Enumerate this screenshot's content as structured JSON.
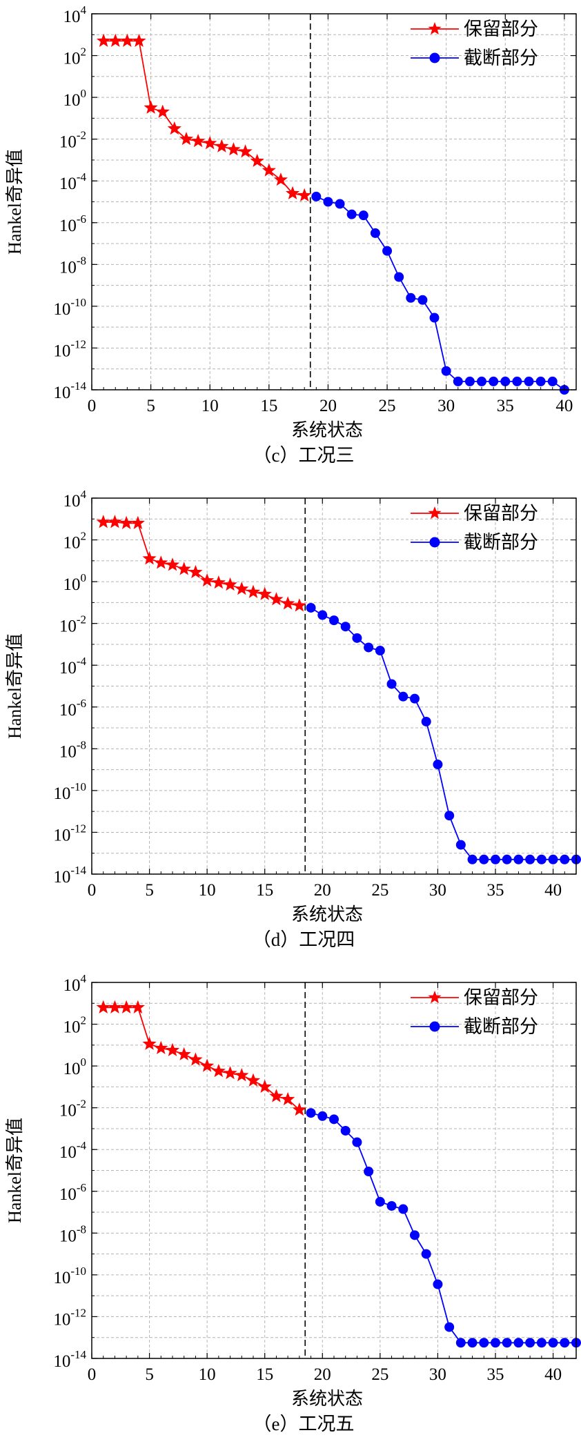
{
  "chart_data": [
    {
      "type": "line",
      "caption": "（c）工况三",
      "xlabel": "系统状态",
      "ylabel": "Hankel奇异值",
      "xlim": [
        0,
        41
      ],
      "ylim_log10": [
        -14,
        4
      ],
      "xticks": [
        "0",
        "5",
        "10",
        "15",
        "20",
        "25",
        "30",
        "35",
        "40"
      ],
      "ytick_exponents": [
        "4",
        "2",
        "0",
        "-2",
        "-4",
        "-6",
        "-8",
        "-10",
        "-12",
        "-14"
      ],
      "divider_x": 18.5,
      "grid": true,
      "legend_position": "top-right",
      "series": [
        {
          "name": "保留部分",
          "color": "#ff0000",
          "marker": "star",
          "x": [
            1,
            2,
            3,
            4,
            5,
            6,
            7,
            8,
            9,
            10,
            11,
            12,
            13,
            14,
            15,
            16,
            17,
            18
          ],
          "log10_y": [
            2.7,
            2.7,
            2.7,
            2.7,
            -0.5,
            -0.7,
            -1.5,
            -2.0,
            -2.1,
            -2.2,
            -2.35,
            -2.5,
            -2.6,
            -3.05,
            -3.5,
            -3.95,
            -4.6,
            -4.7
          ]
        },
        {
          "name": "截断部分",
          "color": "#0000ff",
          "marker": "circle",
          "x": [
            19,
            20,
            21,
            22,
            23,
            24,
            25,
            26,
            27,
            28,
            29,
            30,
            31,
            32,
            33,
            34,
            35,
            36,
            37,
            38,
            39,
            40
          ],
          "log10_y": [
            -4.75,
            -5.0,
            -5.1,
            -5.6,
            -5.65,
            -6.5,
            -7.35,
            -8.6,
            -9.6,
            -9.7,
            -10.55,
            -13.1,
            -13.6,
            -13.6,
            -13.6,
            -13.6,
            -13.6,
            -13.6,
            -13.6,
            -13.6,
            -13.6,
            -14.0
          ]
        }
      ]
    },
    {
      "type": "line",
      "caption": "（d）工况四",
      "xlabel": "系统状态",
      "ylabel": "Hankel奇异值",
      "xlim": [
        0,
        42
      ],
      "ylim_log10": [
        -14,
        4
      ],
      "xticks": [
        "0",
        "5",
        "10",
        "15",
        "20",
        "25",
        "30",
        "35",
        "40"
      ],
      "ytick_exponents": [
        "4",
        "2",
        "0",
        "-2",
        "-4",
        "-6",
        "-8",
        "-10",
        "-12",
        "-14"
      ],
      "divider_x": 18.5,
      "grid": true,
      "legend_position": "top-right",
      "series": [
        {
          "name": "保留部分",
          "color": "#ff0000",
          "marker": "star",
          "x": [
            1,
            2,
            3,
            4,
            5,
            6,
            7,
            8,
            9,
            10,
            11,
            12,
            13,
            14,
            15,
            16,
            17,
            18
          ],
          "log10_y": [
            2.85,
            2.85,
            2.8,
            2.8,
            1.1,
            0.9,
            0.8,
            0.6,
            0.45,
            0.05,
            -0.05,
            -0.15,
            -0.35,
            -0.5,
            -0.6,
            -0.85,
            -1.05,
            -1.15
          ]
        },
        {
          "name": "截断部分",
          "color": "#0000ff",
          "marker": "circle",
          "x": [
            19,
            20,
            21,
            22,
            23,
            24,
            25,
            26,
            27,
            28,
            29,
            30,
            31,
            32,
            33,
            34,
            35,
            36,
            37,
            38,
            39,
            40,
            41,
            42
          ],
          "log10_y": [
            -1.25,
            -1.6,
            -1.85,
            -2.15,
            -2.7,
            -3.15,
            -3.3,
            -4.9,
            -5.5,
            -5.6,
            -6.7,
            -8.75,
            -11.2,
            -12.6,
            -13.3,
            -13.3,
            -13.3,
            -13.3,
            -13.3,
            -13.3,
            -13.3,
            -13.3,
            -13.3,
            -13.3
          ]
        }
      ]
    },
    {
      "type": "line",
      "caption": "（e）工况五",
      "xlabel": "系统状态",
      "ylabel": "Hankel奇异值",
      "xlim": [
        0,
        42
      ],
      "ylim_log10": [
        -14,
        4
      ],
      "xticks": [
        "0",
        "5",
        "10",
        "15",
        "20",
        "25",
        "30",
        "35",
        "40"
      ],
      "ytick_exponents": [
        "4",
        "2",
        "0",
        "-2",
        "-4",
        "-6",
        "-8",
        "-10",
        "-12",
        "-14"
      ],
      "divider_x": 18.5,
      "grid": true,
      "legend_position": "top-right",
      "series": [
        {
          "name": "保留部分",
          "color": "#ff0000",
          "marker": "star",
          "x": [
            1,
            2,
            3,
            4,
            5,
            6,
            7,
            8,
            9,
            10,
            11,
            12,
            13,
            14,
            15,
            16,
            17,
            18
          ],
          "log10_y": [
            2.8,
            2.8,
            2.8,
            2.8,
            1.05,
            0.85,
            0.75,
            0.55,
            0.3,
            0.0,
            -0.25,
            -0.35,
            -0.45,
            -0.7,
            -1.0,
            -1.45,
            -1.6,
            -2.1
          ]
        },
        {
          "name": "截断部分",
          "color": "#0000ff",
          "marker": "circle",
          "x": [
            19,
            20,
            21,
            22,
            23,
            24,
            25,
            26,
            27,
            28,
            29,
            30,
            31,
            32,
            33,
            34,
            35,
            36,
            37,
            38,
            39,
            40,
            41,
            42
          ],
          "log10_y": [
            -2.25,
            -2.4,
            -2.55,
            -3.1,
            -3.65,
            -5.05,
            -6.5,
            -6.7,
            -6.85,
            -8.1,
            -9.0,
            -10.45,
            -12.5,
            -13.25,
            -13.25,
            -13.25,
            -13.25,
            -13.25,
            -13.25,
            -13.25,
            -13.25,
            -13.25,
            -13.25,
            -13.25
          ]
        }
      ]
    }
  ]
}
